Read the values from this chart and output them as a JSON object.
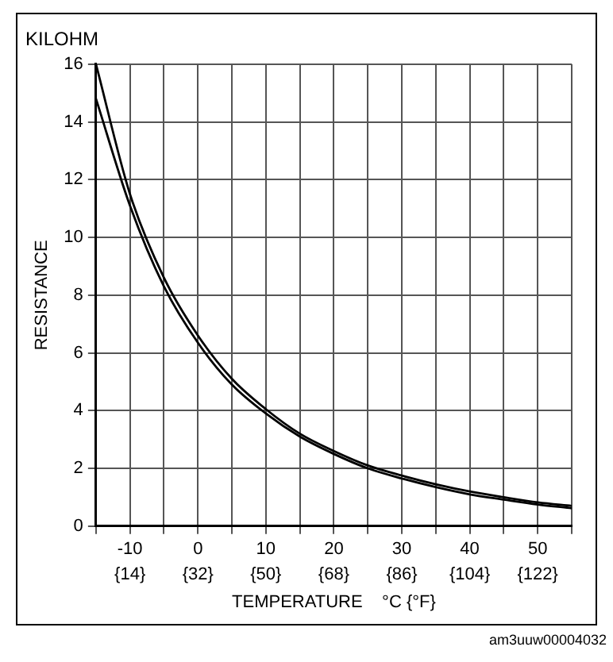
{
  "chart_data": {
    "type": "line",
    "title": "KILOHM",
    "xlabel": "TEMPERATURE    °C {°F}",
    "ylabel": "RESISTANCE",
    "annotations": [
      "am3uuw00004032"
    ],
    "x": [
      -15,
      -10,
      -5,
      0,
      5,
      10,
      15,
      20,
      25,
      30,
      35,
      40,
      45,
      50,
      55
    ],
    "series": [
      {
        "color": "#000000",
        "values": [
          16,
          11.5,
          8.6,
          6.6,
          5.1,
          4.05,
          3.2,
          2.6,
          2.1,
          1.75,
          1.45,
          1.2,
          1.0,
          0.82,
          0.7
        ]
      },
      {
        "color": "#000000",
        "values": [
          14.8,
          11.1,
          8.3,
          6.35,
          4.9,
          3.9,
          3.1,
          2.5,
          2.0,
          1.65,
          1.35,
          1.1,
          0.92,
          0.75,
          0.62
        ]
      }
    ],
    "xlim": [
      -15,
      55
    ],
    "xticks": [
      {
        "value": -15,
        "label": null
      },
      -10,
      {
        "value": -5,
        "label": null
      },
      0,
      {
        "value": 5,
        "label": null
      },
      10,
      {
        "value": 15,
        "label": null
      },
      20,
      {
        "value": 25,
        "label": null
      },
      30,
      {
        "value": 35,
        "label": null
      },
      40,
      {
        "value": 45,
        "label": null
      },
      50,
      {
        "value": 55,
        "label": null
      }
    ],
    "x2lim": [
      5,
      131
    ],
    "x2ticks": [
      {
        "value": 14,
        "label": "{14}"
      },
      {
        "value": 32,
        "label": "{32}"
      },
      {
        "value": 50,
        "label": "{50}"
      },
      {
        "value": 68,
        "label": "{68}"
      },
      {
        "value": 86,
        "label": "{86}"
      },
      {
        "value": 104,
        "label": "{104}"
      },
      {
        "value": 122,
        "label": "{122}"
      }
    ],
    "ylim": [
      0,
      16
    ],
    "yticks": [
      0,
      2,
      4,
      6,
      8,
      10,
      12,
      14,
      16
    ],
    "grid": true,
    "legend": false,
    "marker": "none",
    "line_style": "solid"
  }
}
